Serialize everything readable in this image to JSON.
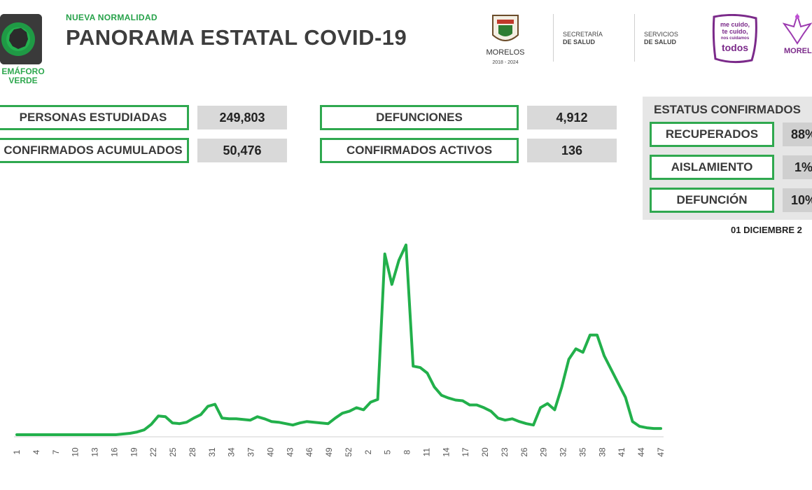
{
  "header": {
    "semaforo_label": "EMÁFORO\nVERDE",
    "kicker": "NUEVA NORMALIDAD",
    "title": "PANORAMA ESTATAL COVID-19",
    "logos": {
      "morelos": "MORELOS",
      "morelos_years": "2018 - 2024",
      "secretaria": "SECRETARÍA",
      "secretaria_bold": "DE SALUD",
      "servicios": "SERVICIOS",
      "servicios_bold": "DE SALUD",
      "campaign_line1": "me cuido,",
      "campaign_line2": "te cuido,",
      "campaign_line3": "nos cuidamos",
      "campaign_line4": "todos",
      "right_logo": "MOREL"
    }
  },
  "stats": {
    "personas_estudiadas": {
      "label": "PERSONAS ESTUDIADAS",
      "value": "249,803"
    },
    "confirmados_acumulados": {
      "label": "CONFIRMADOS ACUMULADOS",
      "value": "50,476"
    },
    "defunciones": {
      "label": "DEFUNCIONES",
      "value": "4,912"
    },
    "confirmados_activos": {
      "label": "CONFIRMADOS ACTIVOS",
      "value": "136"
    }
  },
  "status": {
    "title": "ESTATUS CONFIRMADOS",
    "items": [
      {
        "label": "RECUPERADOS",
        "value": "88%"
      },
      {
        "label": "AISLAMIENTO",
        "value": "1%"
      },
      {
        "label": "DEFUNCIÓN",
        "value": "10%"
      }
    ]
  },
  "date": "01 DICIEMBRE 2",
  "colors": {
    "accent": "#2fa84f",
    "line": "#22b04b",
    "panel": "#e6e6e6",
    "value_bg": "#d9d9d9"
  },
  "chart_data": {
    "type": "line",
    "title": "",
    "xlabel": "",
    "ylabel": "",
    "tick_labels": [
      "1",
      "4",
      "7",
      "10",
      "13",
      "16",
      "19",
      "22",
      "25",
      "28",
      "31",
      "34",
      "37",
      "40",
      "43",
      "46",
      "49",
      "52",
      "2",
      "5",
      "8",
      "11",
      "14",
      "17",
      "20",
      "23",
      "26",
      "29",
      "32",
      "35",
      "38",
      "41",
      "44",
      "47"
    ],
    "ylim": [
      0,
      280
    ],
    "series": [
      {
        "values": [
          1,
          1,
          1,
          1,
          1,
          1,
          1,
          1,
          1,
          1,
          1,
          1,
          1,
          1,
          1,
          2,
          3,
          5,
          8,
          16,
          28,
          27,
          18,
          17,
          19,
          25,
          30,
          42,
          45,
          25,
          24,
          24,
          23,
          22,
          27,
          24,
          20,
          19,
          17,
          15,
          18,
          20,
          19,
          18,
          17,
          25,
          32,
          35,
          40,
          37,
          48,
          52,
          262,
          218,
          253,
          275,
          100,
          98,
          90,
          70,
          58,
          54,
          51,
          50,
          44,
          44,
          40,
          35,
          25,
          22,
          24,
          20,
          17,
          15,
          40,
          46,
          37,
          70,
          110,
          125,
          120,
          145,
          145,
          115,
          95,
          75,
          55,
          20,
          13,
          11,
          10,
          10
        ]
      }
    ]
  }
}
